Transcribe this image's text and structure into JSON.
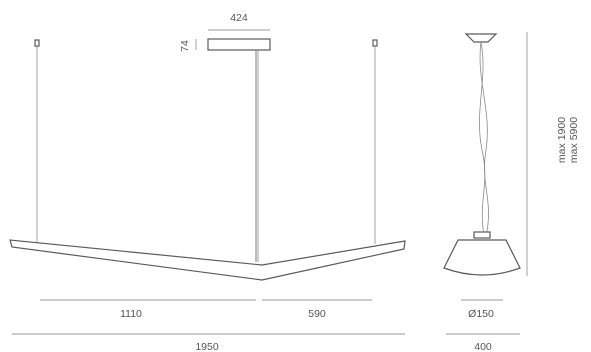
{
  "dimensions": {
    "top_width": "424",
    "top_height": "74",
    "segment_left": "1110",
    "segment_right": "590",
    "total_width": "1950",
    "side_height_min": "max 1900",
    "side_height_max": "max 5900",
    "canopy_diameter": "Ø150",
    "shade_width": "400"
  },
  "colors": {
    "line": "#7a7a7a",
    "body_outline": "#5a5a5a",
    "dim_text": "#555555"
  }
}
